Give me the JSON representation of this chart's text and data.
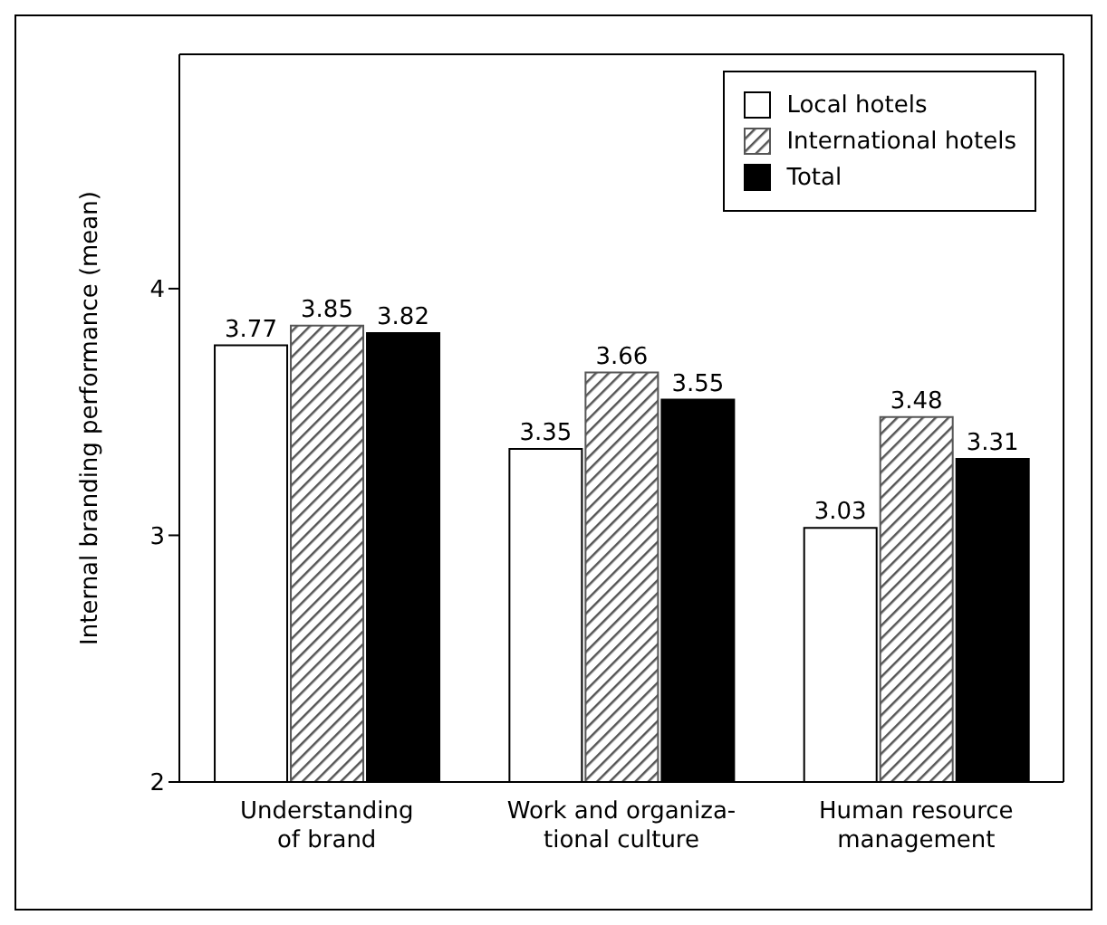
{
  "chart_data": {
    "type": "bar",
    "ylabel": "Internal branding performance (mean)",
    "categories": [
      "Understanding\nof brand",
      "Work and organiza-\ntional culture",
      "Human resource\nmanagement"
    ],
    "series": [
      {
        "name": "Local hotels",
        "color": "#ffffff",
        "values": [
          3.77,
          3.35,
          3.03
        ]
      },
      {
        "name": "International hotels",
        "color": "#555555",
        "values": [
          3.85,
          3.66,
          3.48
        ]
      },
      {
        "name": "Total",
        "color": "#000000",
        "values": [
          3.82,
          3.55,
          3.31
        ]
      }
    ],
    "ylim": [
      2,
      4.95
    ],
    "yticks": [
      2,
      3,
      4
    ],
    "grid": false,
    "legend": "top right",
    "data_labels": true
  }
}
